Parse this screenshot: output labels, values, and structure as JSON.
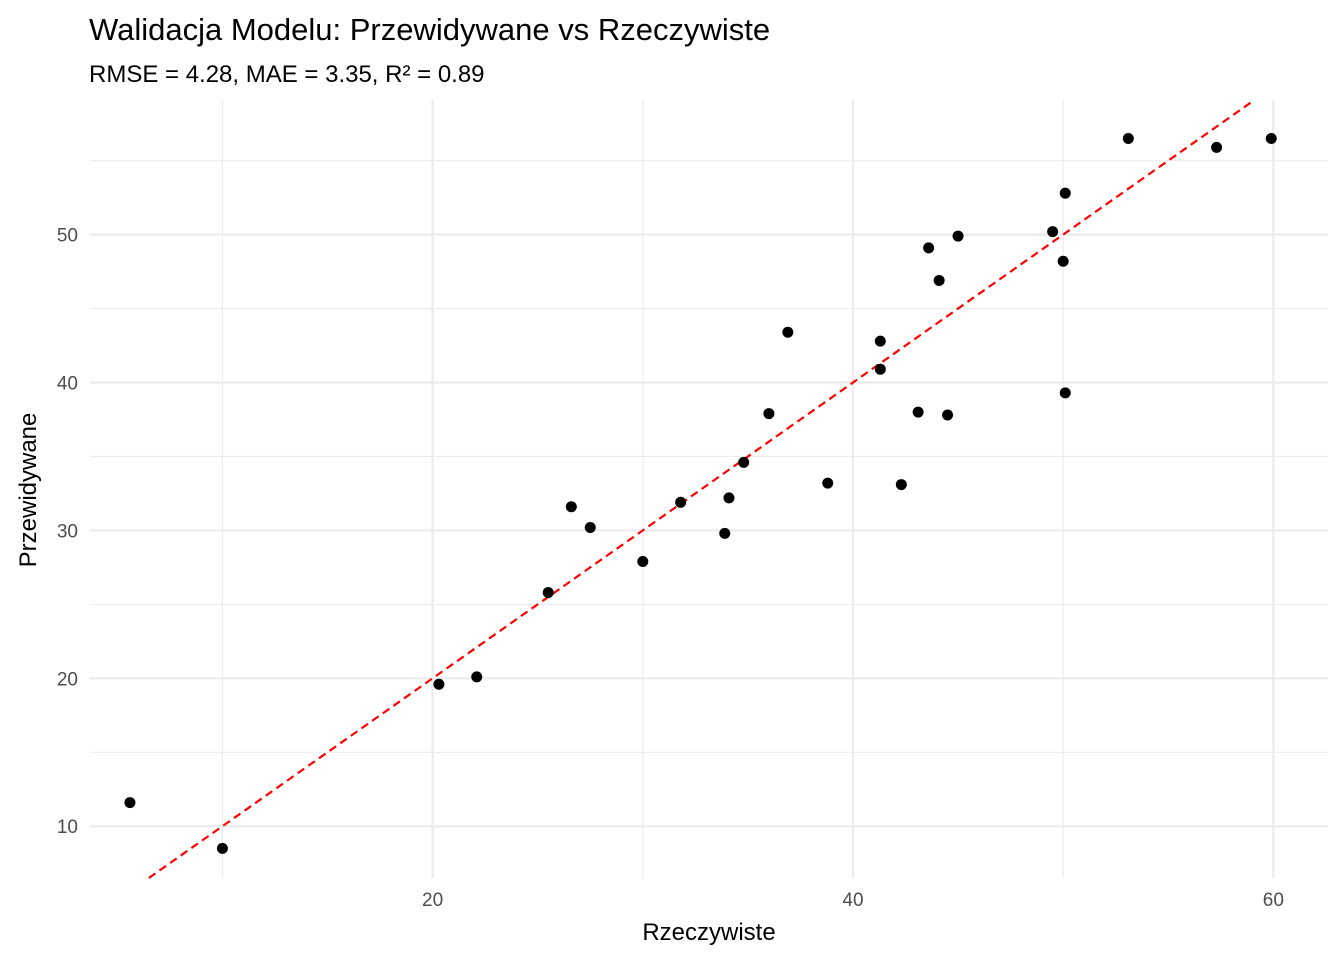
{
  "chart_data": {
    "type": "scatter",
    "title": "Walidacja Modelu: Przewidywane vs Rzeczywiste",
    "subtitle": "RMSE = 4.28, MAE = 3.35, R² = 0.89",
    "xlabel": "Rzeczywiste",
    "ylabel": "Przewidywane",
    "xlim": [
      3.7,
      62.6
    ],
    "ylim": [
      6.5,
      59.1
    ],
    "x_ticks": [
      20,
      40,
      60
    ],
    "x_minor_ticks": [
      10,
      30,
      50
    ],
    "y_ticks": [
      10,
      20,
      30,
      40,
      50
    ],
    "y_minor_ticks": [
      15,
      25,
      35,
      45,
      55
    ],
    "grid": true,
    "legend": "none",
    "points": {
      "x": [
        5.6,
        10.0,
        20.3,
        22.1,
        25.5,
        26.6,
        27.5,
        30.0,
        31.8,
        33.9,
        34.1,
        34.8,
        36.0,
        36.9,
        38.8,
        41.3,
        41.3,
        42.3,
        43.1,
        43.6,
        44.1,
        44.5,
        45.0,
        49.5,
        50.0,
        50.1,
        50.1,
        53.1,
        57.3,
        59.9
      ],
      "y": [
        11.6,
        8.5,
        19.6,
        20.1,
        25.8,
        31.6,
        30.2,
        27.9,
        31.9,
        29.8,
        32.2,
        34.6,
        37.9,
        43.4,
        33.2,
        42.8,
        40.9,
        33.1,
        38.0,
        49.1,
        46.9,
        37.8,
        49.9,
        50.2,
        48.2,
        39.3,
        52.8,
        56.5,
        55.9,
        56.5
      ]
    },
    "reference_line": {
      "slope": 1,
      "intercept": 0,
      "style": "dashed"
    },
    "colors": {
      "points": "#000000",
      "reference_line": "#ff0000",
      "grid": "#ebebeb"
    }
  }
}
